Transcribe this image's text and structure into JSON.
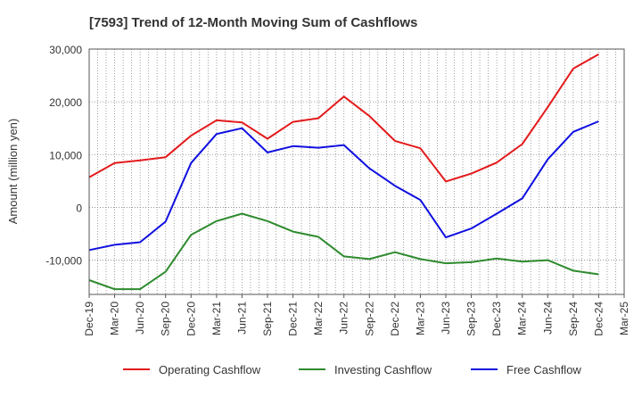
{
  "chart_data": {
    "type": "line",
    "title": "[7593]  Trend of 12-Month Moving Sum of Cashflows",
    "xlabel": "",
    "ylabel": "Amount (million yen)",
    "ylim": [
      -16500,
      30000
    ],
    "yticks": [
      30000,
      20000,
      10000,
      0,
      -10000
    ],
    "ytick_labels": [
      "30,000",
      "20,000",
      "10,000",
      "0",
      "-10,000"
    ],
    "categories": [
      "Dec-19",
      "Mar-20",
      "Jun-20",
      "Sep-20",
      "Dec-20",
      "Mar-21",
      "Jun-21",
      "Sep-21",
      "Dec-21",
      "Mar-22",
      "Jun-22",
      "Sep-22",
      "Dec-22",
      "Mar-23",
      "Jun-23",
      "Sep-23",
      "Dec-23",
      "Mar-24",
      "Jun-24",
      "Sep-24",
      "Dec-24",
      "Mar-25"
    ],
    "grid": true,
    "legend_position": "bottom",
    "series": [
      {
        "name": "Operating Cashflow",
        "color": "#e31a1c",
        "values": [
          5700,
          8400,
          8900,
          9500,
          13600,
          16500,
          16100,
          13000,
          16200,
          16900,
          21000,
          17300,
          12600,
          11200,
          4900,
          6400,
          8500,
          12000,
          19000,
          26300,
          29000,
          null
        ]
      },
      {
        "name": "Investing Cashflow",
        "color": "#2e8b2e",
        "values": [
          -13800,
          -15500,
          -15500,
          -12200,
          -5200,
          -2600,
          -1200,
          -2600,
          -4600,
          -5600,
          -9300,
          -9800,
          -8500,
          -9800,
          -10600,
          -10400,
          -9700,
          -10300,
          -10000,
          -12000,
          -12700,
          null
        ]
      },
      {
        "name": "Free Cashflow",
        "color": "#1010e0",
        "values": [
          -8100,
          -7100,
          -6600,
          -2700,
          8400,
          13900,
          15000,
          10400,
          11600,
          11300,
          11800,
          7400,
          4100,
          1400,
          -5700,
          -4000,
          -1200,
          1700,
          9100,
          14300,
          16300,
          null
        ]
      }
    ]
  }
}
